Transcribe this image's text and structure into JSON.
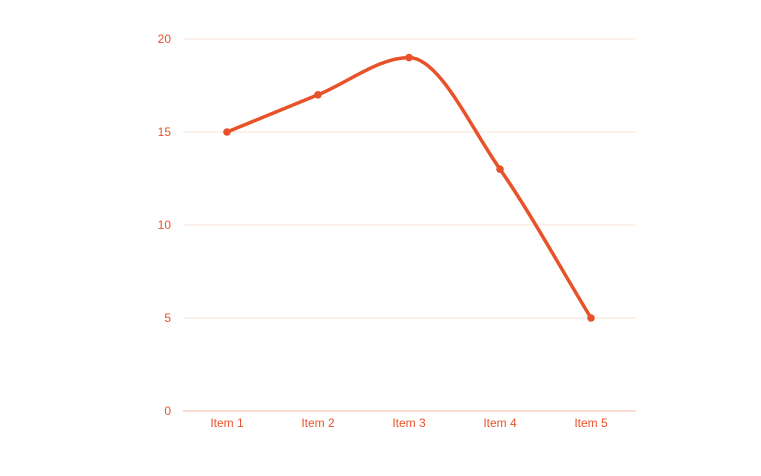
{
  "colors": {
    "accent": "#e8522a",
    "grid": "#fbe3da",
    "axis": "#f4b9a6",
    "background": "#ffffff"
  },
  "chart_data": {
    "type": "line",
    "categories": [
      "Item 1",
      "Item 2",
      "Item 3",
      "Item 4",
      "Item 5"
    ],
    "series": [
      {
        "values": [
          15,
          17,
          19,
          13,
          5
        ]
      }
    ],
    "title": "",
    "xlabel": "",
    "ylabel": "",
    "ylim": [
      0,
      20
    ],
    "yticks": [
      0,
      5,
      10,
      15,
      20
    ],
    "grid": true,
    "legend": "none",
    "smooth": true
  }
}
